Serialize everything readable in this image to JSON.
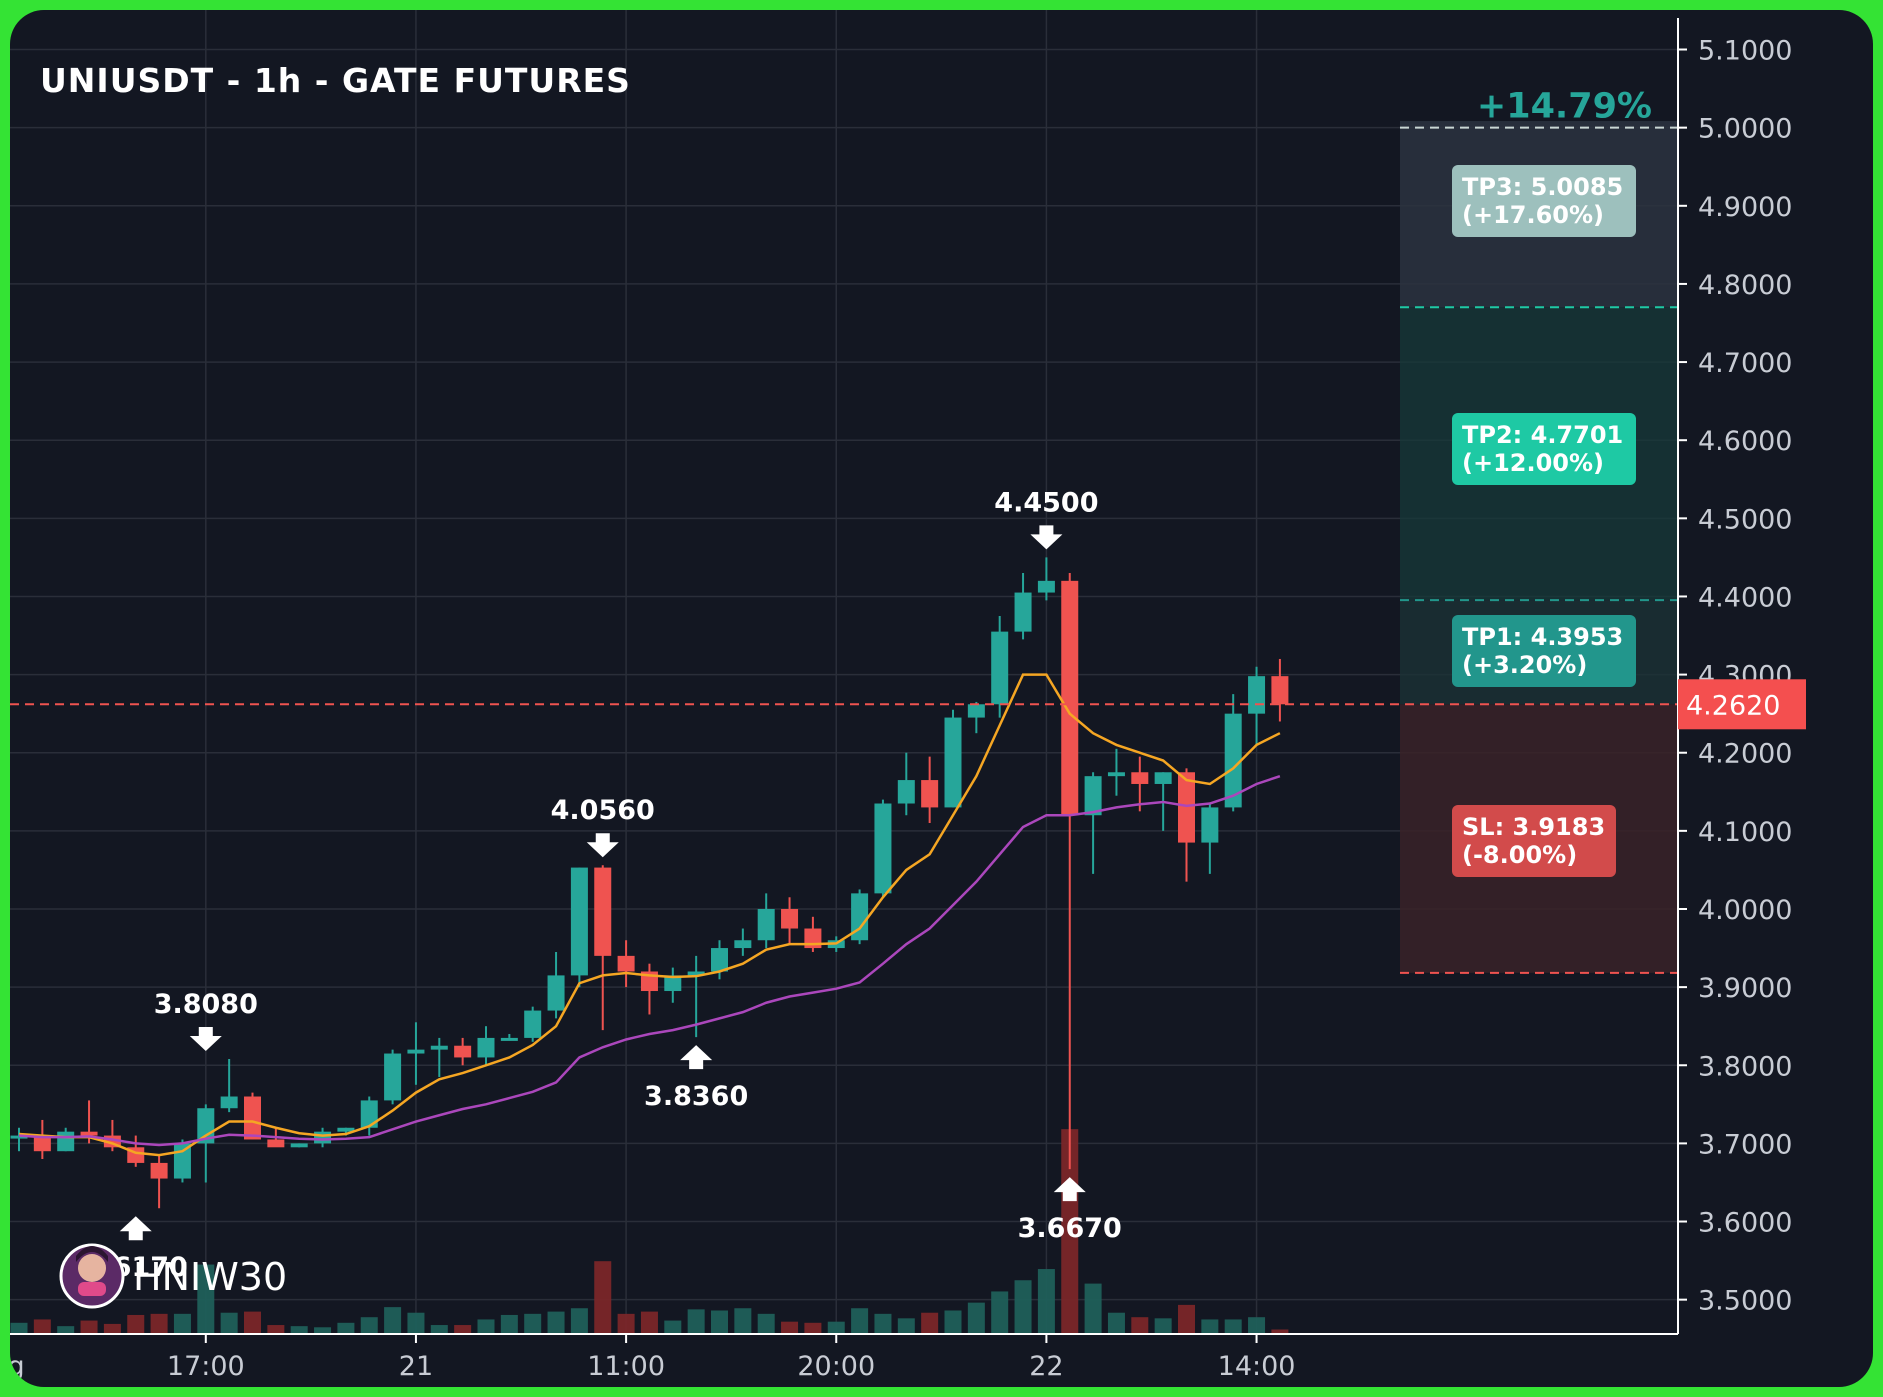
{
  "chart_data": {
    "type": "candlestick",
    "title": "UNIUSDT - 1h - GATE FUTURES",
    "watermark": "HNIW30",
    "ylim": [
      3.465,
      5.125
    ],
    "y_ticks": [
      "5.1000",
      "5.0000",
      "4.9000",
      "4.8000",
      "4.7000",
      "4.6000",
      "4.5000",
      "4.4000",
      "4.3000",
      "4.2000",
      "4.1000",
      "4.0000",
      "3.9000",
      "3.8000",
      "3.7000",
      "3.6000",
      "3.5000"
    ],
    "x_ticks": [
      {
        "label": "g",
        "index": -1
      },
      {
        "label": "17:00",
        "index": 8
      },
      {
        "label": "21",
        "index": 17
      },
      {
        "label": "11:00",
        "index": 26
      },
      {
        "label": "20:00",
        "index": 35
      },
      {
        "label": "22",
        "index": 44
      },
      {
        "label": "14:00",
        "index": 53
      }
    ],
    "candles": [
      {
        "o": 3.71,
        "h": 3.72,
        "l": 3.69,
        "c": 3.71,
        "v": 20
      },
      {
        "o": 3.71,
        "h": 3.73,
        "l": 3.68,
        "c": 3.69,
        "v": 26
      },
      {
        "o": 3.69,
        "h": 3.72,
        "l": 3.69,
        "c": 3.715,
        "v": 14
      },
      {
        "o": 3.715,
        "h": 3.755,
        "l": 3.7,
        "c": 3.71,
        "v": 24
      },
      {
        "o": 3.71,
        "h": 3.73,
        "l": 3.69,
        "c": 3.695,
        "v": 18
      },
      {
        "o": 3.695,
        "h": 3.71,
        "l": 3.67,
        "c": 3.675,
        "v": 34
      },
      {
        "o": 3.675,
        "h": 3.685,
        "l": 3.617,
        "c": 3.655,
        "v": 36
      },
      {
        "o": 3.655,
        "h": 3.705,
        "l": 3.65,
        "c": 3.7,
        "v": 36
      },
      {
        "o": 3.7,
        "h": 3.75,
        "l": 3.65,
        "c": 3.745,
        "v": 124
      },
      {
        "o": 3.745,
        "h": 3.808,
        "l": 3.74,
        "c": 3.76,
        "v": 38
      },
      {
        "o": 3.76,
        "h": 3.765,
        "l": 3.705,
        "c": 3.705,
        "v": 40
      },
      {
        "o": 3.705,
        "h": 3.72,
        "l": 3.7,
        "c": 3.695,
        "v": 16
      },
      {
        "o": 3.695,
        "h": 3.7,
        "l": 3.695,
        "c": 3.7,
        "v": 14
      },
      {
        "o": 3.7,
        "h": 3.72,
        "l": 3.695,
        "c": 3.715,
        "v": 12
      },
      {
        "o": 3.715,
        "h": 3.72,
        "l": 3.71,
        "c": 3.72,
        "v": 20
      },
      {
        "o": 3.72,
        "h": 3.76,
        "l": 3.71,
        "c": 3.755,
        "v": 30
      },
      {
        "o": 3.755,
        "h": 3.82,
        "l": 3.75,
        "c": 3.815,
        "v": 48
      },
      {
        "o": 3.815,
        "h": 3.855,
        "l": 3.775,
        "c": 3.82,
        "v": 38
      },
      {
        "o": 3.82,
        "h": 3.835,
        "l": 3.785,
        "c": 3.825,
        "v": 16
      },
      {
        "o": 3.825,
        "h": 3.835,
        "l": 3.8,
        "c": 3.81,
        "v": 16
      },
      {
        "o": 3.81,
        "h": 3.85,
        "l": 3.8,
        "c": 3.835,
        "v": 26
      },
      {
        "o": 3.835,
        "h": 3.84,
        "l": 3.835,
        "c": 3.835,
        "v": 34
      },
      {
        "o": 3.835,
        "h": 3.875,
        "l": 3.83,
        "c": 3.87,
        "v": 36
      },
      {
        "o": 3.87,
        "h": 3.945,
        "l": 3.86,
        "c": 3.915,
        "v": 40
      },
      {
        "o": 3.915,
        "h": 4.053,
        "l": 3.9,
        "c": 4.053,
        "v": 46
      },
      {
        "o": 4.053,
        "h": 4.056,
        "l": 3.845,
        "c": 3.94,
        "v": 130
      },
      {
        "o": 3.94,
        "h": 3.96,
        "l": 3.9,
        "c": 3.92,
        "v": 36
      },
      {
        "o": 3.92,
        "h": 3.93,
        "l": 3.865,
        "c": 3.895,
        "v": 40
      },
      {
        "o": 3.895,
        "h": 3.925,
        "l": 3.88,
        "c": 3.915,
        "v": 24
      },
      {
        "o": 3.915,
        "h": 3.94,
        "l": 3.836,
        "c": 3.92,
        "v": 44
      },
      {
        "o": 3.92,
        "h": 3.96,
        "l": 3.91,
        "c": 3.95,
        "v": 42
      },
      {
        "o": 3.95,
        "h": 3.975,
        "l": 3.94,
        "c": 3.96,
        "v": 46
      },
      {
        "o": 3.96,
        "h": 4.02,
        "l": 3.95,
        "c": 4.0,
        "v": 36
      },
      {
        "o": 4.0,
        "h": 4.015,
        "l": 3.955,
        "c": 3.975,
        "v": 22
      },
      {
        "o": 3.975,
        "h": 3.99,
        "l": 3.945,
        "c": 3.95,
        "v": 20
      },
      {
        "o": 3.95,
        "h": 3.965,
        "l": 3.945,
        "c": 3.96,
        "v": 22
      },
      {
        "o": 3.96,
        "h": 4.025,
        "l": 3.955,
        "c": 4.02,
        "v": 46
      },
      {
        "o": 4.02,
        "h": 4.14,
        "l": 4.015,
        "c": 4.135,
        "v": 36
      },
      {
        "o": 4.135,
        "h": 4.2,
        "l": 4.12,
        "c": 4.165,
        "v": 28
      },
      {
        "o": 4.165,
        "h": 4.195,
        "l": 4.11,
        "c": 4.13,
        "v": 38
      },
      {
        "o": 4.13,
        "h": 4.255,
        "l": 4.13,
        "c": 4.245,
        "v": 42
      },
      {
        "o": 4.245,
        "h": 4.265,
        "l": 4.225,
        "c": 4.262,
        "v": 56
      },
      {
        "o": 4.262,
        "h": 4.375,
        "l": 4.245,
        "c": 4.355,
        "v": 76
      },
      {
        "o": 4.355,
        "h": 4.43,
        "l": 4.345,
        "c": 4.405,
        "v": 96
      },
      {
        "o": 4.405,
        "h": 4.45,
        "l": 4.395,
        "c": 4.42,
        "v": 116
      },
      {
        "o": 4.42,
        "h": 4.43,
        "l": 3.667,
        "c": 4.12,
        "v": 236
      },
      {
        "o": 4.12,
        "h": 4.175,
        "l": 4.045,
        "c": 4.17,
        "v": 90
      },
      {
        "o": 4.17,
        "h": 4.205,
        "l": 4.145,
        "c": 4.175,
        "v": 38
      },
      {
        "o": 4.175,
        "h": 4.195,
        "l": 4.125,
        "c": 4.16,
        "v": 30
      },
      {
        "o": 4.16,
        "h": 4.175,
        "l": 4.1,
        "c": 4.175,
        "v": 28
      },
      {
        "o": 4.175,
        "h": 4.18,
        "l": 4.035,
        "c": 4.085,
        "v": 52
      },
      {
        "o": 4.085,
        "h": 4.135,
        "l": 4.045,
        "c": 4.13,
        "v": 26
      },
      {
        "o": 4.13,
        "h": 4.275,
        "l": 4.125,
        "c": 4.25,
        "v": 26
      },
      {
        "o": 4.25,
        "h": 4.31,
        "l": 4.21,
        "c": 4.298,
        "v": 30
      },
      {
        "o": 4.298,
        "h": 4.32,
        "l": 4.24,
        "c": 4.262,
        "v": 8
      }
    ],
    "ma_fast": [
      3.712,
      3.71,
      3.708,
      3.708,
      3.7,
      3.688,
      3.685,
      3.69,
      3.71,
      3.728,
      3.728,
      3.72,
      3.713,
      3.71,
      3.712,
      3.722,
      3.742,
      3.765,
      3.782,
      3.79,
      3.8,
      3.81,
      3.826,
      3.85,
      3.905,
      3.915,
      3.918,
      3.915,
      3.913,
      3.914,
      3.92,
      3.93,
      3.948,
      3.955,
      3.955,
      3.956,
      3.975,
      4.015,
      4.05,
      4.07,
      4.12,
      4.17,
      4.235,
      4.3,
      4.3,
      4.25,
      4.225,
      4.21,
      4.2,
      4.19,
      4.165,
      4.16,
      4.18,
      4.21,
      4.225
    ],
    "ma_slow": [
      3.71,
      3.708,
      3.708,
      3.709,
      3.705,
      3.7,
      3.698,
      3.7,
      3.706,
      3.711,
      3.71,
      3.708,
      3.706,
      3.705,
      3.706,
      3.708,
      3.718,
      3.728,
      3.736,
      3.744,
      3.75,
      3.758,
      3.766,
      3.778,
      3.81,
      3.823,
      3.833,
      3.84,
      3.845,
      3.852,
      3.86,
      3.868,
      3.88,
      3.888,
      3.893,
      3.898,
      3.906,
      3.93,
      3.955,
      3.975,
      4.005,
      4.035,
      4.07,
      4.105,
      4.12,
      4.12,
      4.124,
      4.13,
      4.134,
      4.137,
      4.132,
      4.135,
      4.145,
      4.16,
      4.17
    ],
    "current_price": "4.2620",
    "current_value": 4.262,
    "levels": {
      "tp3": {
        "value": 5.0085,
        "label": "TP3: 5.0085",
        "pct": "(+17.60%)"
      },
      "tp2": {
        "value": 4.7701,
        "label": "TP2: 4.7701",
        "pct": "(+12.00%)"
      },
      "tp1": {
        "value": 4.3953,
        "label": "TP1: 4.3953",
        "pct": "(+3.20%)"
      },
      "sl": {
        "value": 3.9183,
        "label": "SL: 3.9183",
        "pct": "(-8.00%)"
      },
      "top_pct": "+14.79%"
    },
    "annotations": [
      {
        "text": "3.8080",
        "index": 8,
        "value": 3.808,
        "dir": "down"
      },
      {
        "text": "4.0560",
        "index": 25,
        "value": 4.056,
        "dir": "down"
      },
      {
        "text": "4.4500",
        "index": 44,
        "value": 4.45,
        "dir": "down"
      },
      {
        "text": "3.6170",
        "index": 5,
        "value": 3.617,
        "dir": "up"
      },
      {
        "text": "3.8360",
        "index": 29,
        "value": 3.836,
        "dir": "up"
      },
      {
        "text": "3.6670",
        "index": 45,
        "value": 3.667,
        "dir": "up"
      }
    ],
    "colors": {
      "bg": "#131722",
      "grid": "#2a2e39",
      "up": "#26a69a",
      "down": "#ef5350",
      "ma_fast": "#f5a623",
      "ma_slow": "#ab47bc",
      "tp_box": "#1ec9a4",
      "tp1_box": "#22968c",
      "tp3_box": "#9dc0bd",
      "sl_box": "#d24b4b",
      "price_tag": "#f44f4f",
      "frame": "#34e334"
    }
  }
}
